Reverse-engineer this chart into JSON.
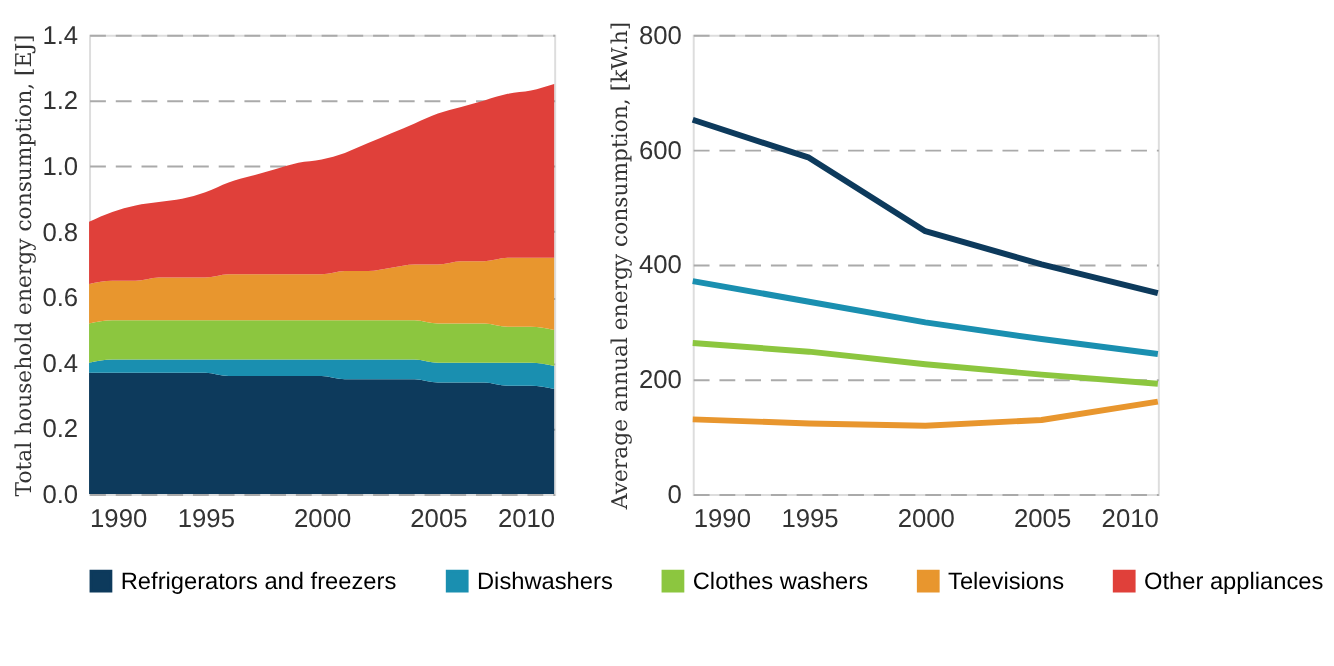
{
  "chart_data": [
    {
      "type": "area",
      "stacked": true,
      "ylabel": "Total household energy consumption, [EJ]",
      "x": [
        1990,
        1991,
        1992,
        1993,
        1994,
        1995,
        1996,
        1997,
        1998,
        1999,
        2000,
        2001,
        2002,
        2003,
        2004,
        2005,
        2006,
        2007,
        2008,
        2009,
        2010
      ],
      "xlim": [
        1990,
        2010
      ],
      "xticks": [
        1990,
        1995,
        2000,
        2005,
        2010
      ],
      "ylim": [
        0,
        1.4
      ],
      "yticks": [
        {
          "value": 0,
          "label": "0.0"
        },
        0.2,
        0.4,
        0.6,
        0.8,
        {
          "value": 1,
          "label": "1.0"
        },
        1.2,
        1.4
      ],
      "grid": "y",
      "legend": "bottom",
      "series": [
        {
          "name": "Refrigerators and freezers",
          "color": "#0d3a5c",
          "values": [
            0.37,
            0.37,
            0.37,
            0.37,
            0.37,
            0.37,
            0.36,
            0.36,
            0.36,
            0.36,
            0.36,
            0.35,
            0.35,
            0.35,
            0.35,
            0.34,
            0.34,
            0.34,
            0.33,
            0.33,
            0.32
          ]
        },
        {
          "name": "Dishwashers",
          "color": "#1a8fb0",
          "values": [
            0.03,
            0.04,
            0.04,
            0.04,
            0.04,
            0.04,
            0.05,
            0.05,
            0.05,
            0.05,
            0.05,
            0.06,
            0.06,
            0.06,
            0.06,
            0.06,
            0.06,
            0.06,
            0.07,
            0.07,
            0.07
          ]
        },
        {
          "name": "Clothes washers",
          "color": "#8cc63f",
          "values": [
            0.12,
            0.12,
            0.12,
            0.12,
            0.12,
            0.12,
            0.12,
            0.12,
            0.12,
            0.12,
            0.12,
            0.12,
            0.12,
            0.12,
            0.12,
            0.12,
            0.12,
            0.12,
            0.11,
            0.11,
            0.11
          ]
        },
        {
          "name": "Televisions",
          "color": "#e8962e",
          "values": [
            0.12,
            0.12,
            0.12,
            0.13,
            0.13,
            0.13,
            0.14,
            0.14,
            0.14,
            0.14,
            0.14,
            0.15,
            0.15,
            0.16,
            0.17,
            0.18,
            0.19,
            0.19,
            0.21,
            0.21,
            0.22
          ]
        },
        {
          "name": "Other appliances",
          "color": "#e0403a",
          "values": [
            0.19,
            0.21,
            0.23,
            0.23,
            0.24,
            0.26,
            0.28,
            0.3,
            0.32,
            0.34,
            0.35,
            0.36,
            0.39,
            0.41,
            0.43,
            0.46,
            0.47,
            0.49,
            0.5,
            0.51,
            0.53
          ]
        }
      ]
    },
    {
      "type": "line",
      "ylabel": "Average annual energy consumption, [kW.h]",
      "x": [
        1990,
        1995,
        2000,
        2005,
        2010
      ],
      "xlim": [
        1990,
        2010
      ],
      "xticks": [
        1990,
        1995,
        2000,
        2005,
        2010
      ],
      "ylim": [
        0,
        800
      ],
      "yticks": [
        0,
        200,
        400,
        600,
        800
      ],
      "grid": "y",
      "marker": "none",
      "line_style": "solid",
      "series": [
        {
          "name": "Refrigerators and freezers",
          "color": "#0d3a5c",
          "values": [
            652,
            586,
            458,
            400,
            350
          ]
        },
        {
          "name": "Dishwashers",
          "color": "#1a8fb0",
          "values": [
            371,
            335,
            299,
            270,
            244
          ]
        },
        {
          "name": "Clothes washers",
          "color": "#8cc63f",
          "values": [
            263,
            248,
            226,
            208,
            192
          ]
        },
        {
          "name": "Televisions",
          "color": "#e8962e",
          "values": [
            130,
            123,
            119,
            129,
            161
          ]
        }
      ]
    }
  ]
}
